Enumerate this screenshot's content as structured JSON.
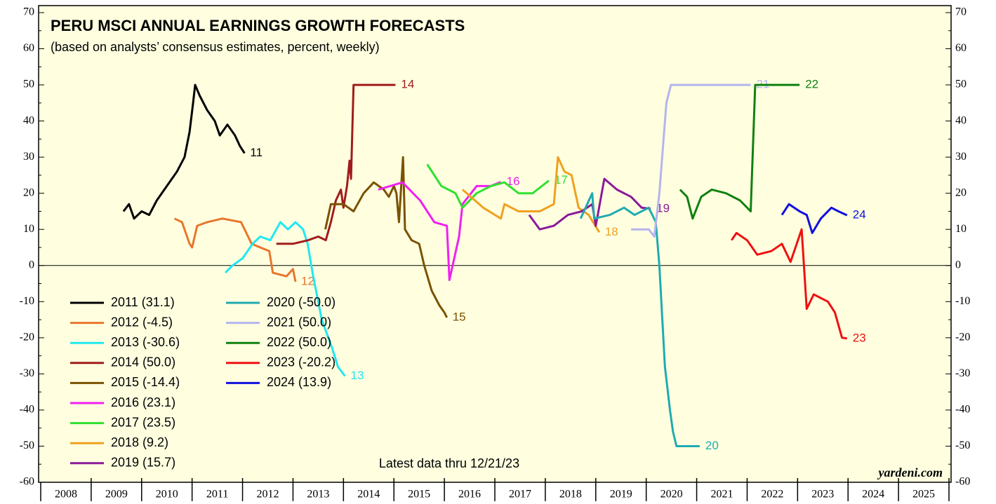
{
  "chart_data": {
    "type": "line",
    "title": "PERU MSCI ANNUAL EARNINGS GROWTH FORECASTS",
    "subtitle": "(based on analysts’ consensus estimates, percent, weekly)",
    "note": "Latest data thru 12/21/23",
    "source": "yardeni.com",
    "xlim": [
      2008,
      2026
    ],
    "xticks": [
      {
        "value": 2008.5,
        "label": "2008"
      },
      {
        "value": 2009.5,
        "label": "2009"
      },
      {
        "value": 2010.5,
        "label": "2010"
      },
      {
        "value": 2011.5,
        "label": "2011"
      },
      {
        "value": 2012.5,
        "label": "2012"
      },
      {
        "value": 2013.5,
        "label": "2013"
      },
      {
        "value": 2014.5,
        "label": "2014"
      },
      {
        "value": 2015.5,
        "label": "2015"
      },
      {
        "value": 2016.5,
        "label": "2016"
      },
      {
        "value": 2017.5,
        "label": "2017"
      },
      {
        "value": 2018.5,
        "label": "2018"
      },
      {
        "value": 2019.5,
        "label": "2019"
      },
      {
        "value": 2020.5,
        "label": "2020"
      },
      {
        "value": 2021.5,
        "label": "2021"
      },
      {
        "value": 2022.5,
        "label": "2022"
      },
      {
        "value": 2023.5,
        "label": "2023"
      },
      {
        "value": 2024.5,
        "label": "2024"
      },
      {
        "value": 2025.5,
        "label": "2025"
      }
    ],
    "ylim": [
      -60,
      70
    ],
    "yticks": [
      -60,
      -50,
      -40,
      -30,
      -20,
      -10,
      0,
      10,
      20,
      30,
      40,
      50,
      60,
      70
    ],
    "y2lim": [
      -60,
      70
    ],
    "y2ticks": [
      -60,
      -50,
      -40,
      -30,
      -20,
      -10,
      0,
      10,
      20,
      30,
      40,
      50,
      60,
      70
    ],
    "series": [
      {
        "name": "2011 (31.1)",
        "label": "11",
        "color": "#000000",
        "x": [
          2009.64,
          2009.75,
          2009.85,
          2010.0,
          2010.15,
          2010.3,
          2010.5,
          2010.7,
          2010.85,
          2010.95,
          2011.02,
          2011.06,
          2011.15,
          2011.3,
          2011.45,
          2011.55,
          2011.7,
          2011.85,
          2011.95,
          2012.04
        ],
        "values": [
          15,
          17,
          13,
          15,
          14,
          18,
          22,
          26,
          30,
          37,
          45,
          50,
          47,
          43,
          40,
          36,
          39,
          36,
          33,
          31.1
        ]
      },
      {
        "name": "2012 (-4.5)",
        "label": "12",
        "color": "#e8762c",
        "x": [
          2010.65,
          2010.8,
          2010.95,
          2011.0,
          2011.1,
          2011.3,
          2011.6,
          2011.97,
          2012.18,
          2012.35,
          2012.53,
          2012.6,
          2012.87,
          2013.0,
          2013.05
        ],
        "values": [
          13,
          12,
          6,
          5,
          11,
          12,
          13,
          12,
          6,
          5,
          4,
          -2,
          -3,
          -1,
          -4.5
        ]
      },
      {
        "name": "2013 (-30.6)",
        "label": "13",
        "color": "#20e8f0",
        "x": [
          2011.66,
          2011.8,
          2012.0,
          2012.2,
          2012.35,
          2012.55,
          2012.75,
          2012.9,
          2013.05,
          2013.2,
          2013.29,
          2013.4,
          2013.5,
          2013.57,
          2013.7,
          2013.78,
          2013.89,
          2014.03
        ],
        "values": [
          -2,
          0,
          2,
          6,
          8,
          7,
          12,
          10,
          12,
          10,
          6,
          -3,
          -10,
          -15,
          -20,
          -23,
          -28,
          -30.6
        ]
      },
      {
        "name": "2014 (50.0)",
        "label": "14",
        "color": "#a01c1c",
        "x": [
          2012.67,
          2013.0,
          2013.3,
          2013.5,
          2013.65,
          2013.75,
          2013.85,
          2013.95,
          2014.0,
          2014.07,
          2014.12,
          2014.15,
          2014.2,
          2015.03
        ],
        "values": [
          6,
          6,
          7,
          8,
          7,
          12,
          18,
          21,
          16,
          22,
          29,
          24,
          50,
          50
        ]
      },
      {
        "name": "2015 (-14.4)",
        "label": "15",
        "color": "#7a5200",
        "x": [
          2013.64,
          2013.75,
          2014.0,
          2014.2,
          2014.4,
          2014.6,
          2014.8,
          2014.9,
          2015.0,
          2015.05,
          2015.1,
          2015.18,
          2015.22,
          2015.35,
          2015.5,
          2015.6,
          2015.75,
          2015.9,
          2016.0,
          2016.05
        ],
        "values": [
          10,
          17,
          17,
          15,
          20,
          23,
          21,
          19,
          22,
          20,
          12,
          30,
          10,
          7,
          6,
          0,
          -7,
          -11,
          -13,
          -14.4
        ]
      },
      {
        "name": "2016 (23.1)",
        "label": "16",
        "color": "#f020f0",
        "x": [
          2014.69,
          2015.17,
          2015.52,
          2015.8,
          2016.05,
          2016.1,
          2016.29,
          2016.36,
          2016.64,
          2016.92,
          2017.12
        ],
        "values": [
          21,
          23,
          18,
          12,
          11,
          -4,
          8,
          17,
          22,
          22,
          23.1
        ]
      },
      {
        "name": "2017 (23.5)",
        "label": "17",
        "color": "#30e030",
        "x": [
          2015.66,
          2015.94,
          2016.22,
          2016.36,
          2016.64,
          2016.92,
          2017.19,
          2017.47,
          2017.75,
          2018.07
        ],
        "values": [
          28,
          22,
          20,
          16,
          20,
          22,
          23,
          20,
          20,
          23.5
        ]
      },
      {
        "name": "2018 (9.2)",
        "label": "18",
        "color": "#f0a020",
        "x": [
          2016.36,
          2016.77,
          2017.12,
          2017.19,
          2017.47,
          2017.89,
          2018.17,
          2018.25,
          2018.38,
          2018.52,
          2018.66,
          2018.86,
          2019.07
        ],
        "values": [
          21,
          16,
          13,
          17,
          15,
          15,
          17,
          30,
          26,
          25,
          16,
          14,
          9.2
        ]
      },
      {
        "name": "2019 (15.7)",
        "label": "19",
        "color": "#8a1a9a",
        "x": [
          2017.68,
          2017.89,
          2018.17,
          2018.45,
          2018.72,
          2018.93,
          2019.0,
          2019.17,
          2019.42,
          2019.7,
          2019.91,
          2020.09
        ],
        "values": [
          14,
          10,
          11,
          14,
          15,
          17,
          11,
          24,
          21,
          19,
          16,
          15.7
        ]
      },
      {
        "name": "2020 (-50.0)",
        "label": "20",
        "color": "#20aab0",
        "x": [
          2018.7,
          2018.93,
          2018.97,
          2019.28,
          2019.56,
          2019.77,
          2020.05,
          2020.19,
          2020.26,
          2020.37,
          2020.47,
          2020.53,
          2020.6,
          2021.06
        ],
        "values": [
          13,
          20,
          13,
          14,
          16,
          14,
          16,
          12,
          0,
          -28,
          -40,
          -46,
          -50,
          -50
        ]
      },
      {
        "name": "2021 (50.0)",
        "label": "21",
        "color": "#b4b4f0",
        "x": [
          2019.7,
          2020.05,
          2020.16,
          2020.26,
          2020.4,
          2020.49,
          2022.07
        ],
        "values": [
          10,
          10,
          8,
          20,
          45,
          50,
          50
        ]
      },
      {
        "name": "2022 (50.0)",
        "label": "22",
        "color": "#108010",
        "x": [
          2020.67,
          2020.81,
          2020.92,
          2021.09,
          2021.3,
          2021.58,
          2021.86,
          2022.07,
          2022.16,
          2023.04
        ],
        "values": [
          21,
          19,
          13,
          19,
          21,
          20,
          18,
          15,
          50,
          50
        ]
      },
      {
        "name": "2023 (-20.2)",
        "label": "23",
        "color": "#f01010",
        "x": [
          2021.69,
          2021.79,
          2022.0,
          2022.2,
          2022.48,
          2022.69,
          2022.86,
          2023.08,
          2023.18,
          2023.32,
          2023.6,
          2023.74,
          2023.88,
          2023.98
        ],
        "values": [
          7,
          9,
          7,
          3,
          4,
          6,
          1,
          10,
          -12,
          -8,
          -10,
          -13,
          -20,
          -20.2
        ]
      },
      {
        "name": "2024 (13.9)",
        "label": "24",
        "color": "#1010e0",
        "x": [
          2022.69,
          2022.83,
          2023.04,
          2023.18,
          2023.29,
          2023.46,
          2023.67,
          2023.81,
          2023.98
        ],
        "values": [
          14,
          17,
          15,
          14,
          9,
          13,
          16,
          15,
          13.9
        ]
      }
    ]
  }
}
